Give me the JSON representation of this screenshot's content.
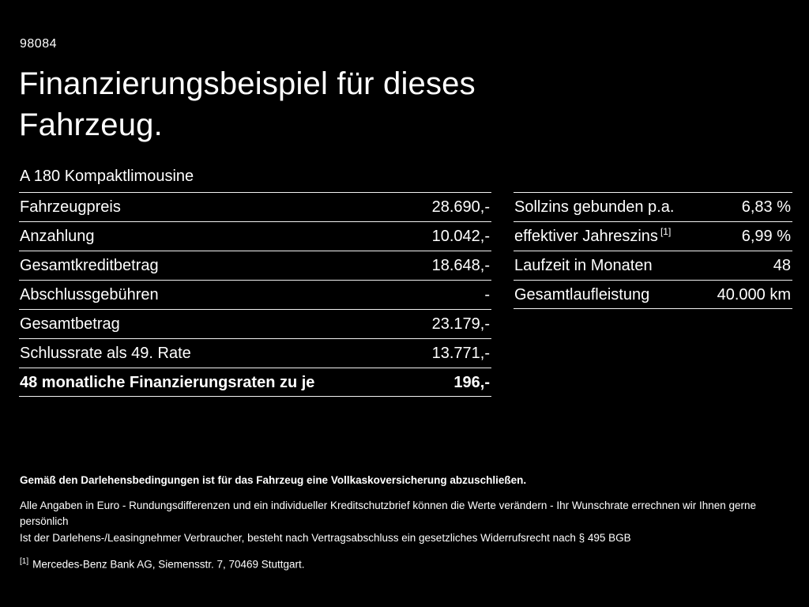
{
  "page": {
    "code": "98084",
    "title": "Finanzierungsbeispiel für dieses Fahrzeug.",
    "subtitle": "A 180 Kompaktlimousine"
  },
  "left_table": {
    "rows": [
      {
        "label": "Fahrzeugpreis",
        "value": "28.690,-"
      },
      {
        "label": "Anzahlung",
        "value": "10.042,-"
      },
      {
        "label": "Gesamtkreditbetrag",
        "value": "18.648,-"
      },
      {
        "label": "Abschlussgebühren",
        "value": "-"
      },
      {
        "label": "Gesamtbetrag",
        "value": "23.179,-"
      },
      {
        "label": "Schlussrate als 49. Rate",
        "value": "13.771,-"
      },
      {
        "label": "48 monatliche Finanzierungsraten zu je",
        "value": "196,-"
      }
    ]
  },
  "right_table": {
    "rows": [
      {
        "label": "Sollzins gebunden p.a.",
        "value": "6,83 %"
      },
      {
        "label": "effektiver Jahreszins",
        "sup": "[1]",
        "value": "6,99 %"
      },
      {
        "label": "Laufzeit in Monaten",
        "value": "48"
      },
      {
        "label": "Gesamtlaufleistung",
        "value": "40.000 km"
      }
    ]
  },
  "footer": {
    "bold_note": "Gemäß den Darlehensbedingungen ist für das Fahrzeug eine Vollkaskoversicherung abzuschließen.",
    "note1": "Alle Angaben in Euro - Rundungsdifferenzen und ein individueller Kreditschutzbrief können die Werte verändern - Ihr Wunschrate errechnen wir Ihnen gerne persönlich",
    "note2": "Ist der Darlehens-/Leasingnehmer Verbraucher, besteht nach Vertragsabschluss ein gesetzliches Widerrufsrecht nach § 495 BGB",
    "ref_marker": "[1]",
    "ref_text": "Mercedes-Benz Bank AG, Siemensstr. 7, 70469 Stuttgart."
  }
}
